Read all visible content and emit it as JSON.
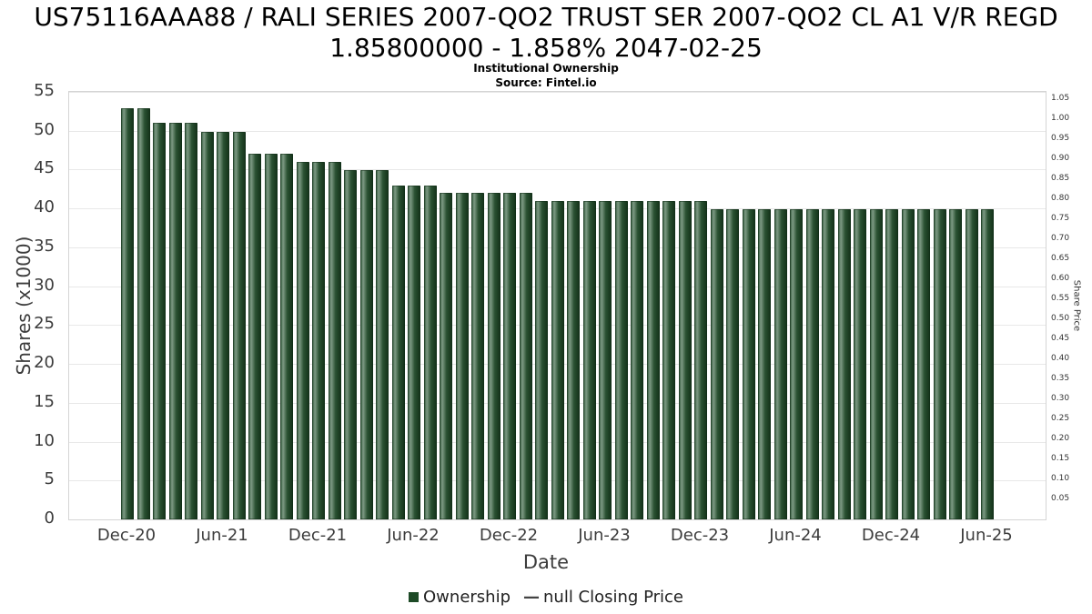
{
  "header": {
    "title_line1": "US75116AAA88 / RALI SERIES 2007-QO2 TRUST SER 2007-QO2 CL A1 V/R REGD",
    "title_line2": "1.85800000 - 1.858% 2047-02-25",
    "subtitle": "Institutional Ownership",
    "source": "Source: Fintel.io"
  },
  "legend": {
    "ownership_label": "Ownership",
    "line_symbol": "—",
    "closing_label": "null Closing Price"
  },
  "colors": {
    "bar": "#1d4a26",
    "grid": "#e8e8e8",
    "axis_text": "#3c3c3c"
  },
  "chart_data": {
    "type": "bar",
    "title": "Institutional Ownership",
    "subtitle": "Source: Fintel.io",
    "xlabel": "Date",
    "ylabel_left": "Shares (x1000)",
    "ylabel_right": "Share Price",
    "ylim_left": [
      0,
      55
    ],
    "yticks_left": [
      0,
      5,
      10,
      15,
      20,
      25,
      30,
      35,
      40,
      45,
      50,
      55
    ],
    "yticks_right": [
      "0.05",
      "0.10",
      "0.15",
      "0.20",
      "0.25",
      "0.30",
      "0.35",
      "0.40",
      "0.45",
      "0.50",
      "0.55",
      "0.60",
      "0.65",
      "0.70",
      "0.75",
      "0.80",
      "0.85",
      "0.90",
      "0.95",
      "1.00",
      "1.05"
    ],
    "right_axis_max": 1.068,
    "grid": "horizontal",
    "legend_position": "bottom",
    "x_tick_labels": [
      "Dec-20",
      "Jun-21",
      "Dec-21",
      "Jun-22",
      "Dec-22",
      "Jun-23",
      "Dec-23",
      "Jun-24",
      "Dec-24",
      "Jun-25"
    ],
    "x_tick_month_index": [
      0,
      6,
      12,
      18,
      24,
      30,
      36,
      42,
      48,
      54
    ],
    "categories": [
      "Dec-20",
      "Jan-21",
      "Feb-21",
      "Mar-21",
      "Apr-21",
      "May-21",
      "Jun-21",
      "Jul-21",
      "Aug-21",
      "Sep-21",
      "Oct-21",
      "Nov-21",
      "Dec-21",
      "Jan-22",
      "Feb-22",
      "Mar-22",
      "Apr-22",
      "May-22",
      "Jun-22",
      "Jul-22",
      "Aug-22",
      "Sep-22",
      "Oct-22",
      "Nov-22",
      "Dec-22",
      "Jan-23",
      "Feb-23",
      "Mar-23",
      "Apr-23",
      "May-23",
      "Jun-23",
      "Jul-23",
      "Aug-23",
      "Sep-23",
      "Oct-23",
      "Nov-23",
      "Dec-23",
      "Jan-24",
      "Feb-24",
      "Mar-24",
      "Apr-24",
      "May-24",
      "Jun-24",
      "Jul-24",
      "Aug-24",
      "Sep-24",
      "Oct-24",
      "Nov-24",
      "Dec-24",
      "Jan-25",
      "Feb-25",
      "Mar-25",
      "Apr-25",
      "May-25",
      "Jun-25"
    ],
    "series": [
      {
        "name": "Ownership",
        "values": [
          52.9,
          52.9,
          51.0,
          51.0,
          51.0,
          49.9,
          49.9,
          49.9,
          47.0,
          47.0,
          47.0,
          46.0,
          46.0,
          46.0,
          44.9,
          44.9,
          44.9,
          43.0,
          43.0,
          43.0,
          42.0,
          42.0,
          42.0,
          42.0,
          42.0,
          42.0,
          41.0,
          41.0,
          41.0,
          41.0,
          41.0,
          41.0,
          41.0,
          41.0,
          41.0,
          41.0,
          41.0,
          39.9,
          39.9,
          39.9,
          39.9,
          39.9,
          39.9,
          39.9,
          39.9,
          39.9,
          39.9,
          39.9,
          39.9,
          39.9,
          39.9,
          39.9,
          39.9,
          39.9,
          39.9
        ]
      },
      {
        "name": "null Closing Price",
        "values": []
      }
    ]
  }
}
